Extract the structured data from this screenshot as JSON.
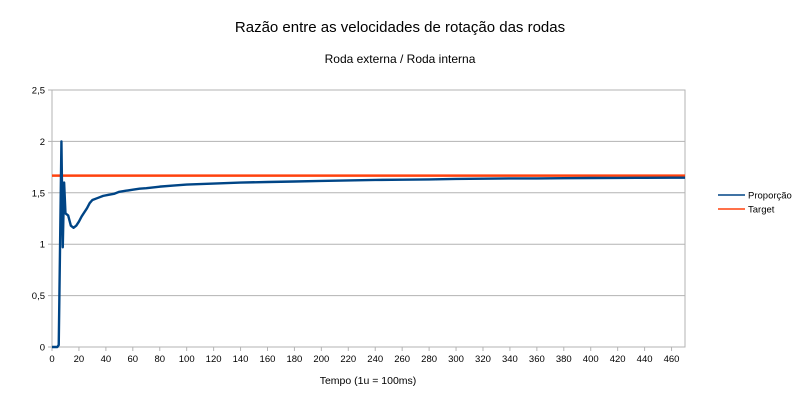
{
  "chart_data": {
    "type": "line",
    "title": "Razão entre as velocidades de rotação das rodas",
    "subtitle": "Roda externa / Roda interna",
    "xlabel": "Tempo (1u = 100ms)",
    "ylabel": "",
    "xlim": [
      0,
      470
    ],
    "ylim": [
      0,
      2.5
    ],
    "x_ticks": [
      "0",
      "20",
      "40",
      "60",
      "80",
      "100",
      "120",
      "140",
      "160",
      "180",
      "200",
      "220",
      "240",
      "260",
      "280",
      "300",
      "320",
      "340",
      "360",
      "380",
      "400",
      "420",
      "440",
      "460"
    ],
    "y_ticks": [
      {
        "value": 0,
        "label": "0"
      },
      {
        "value": 0.5,
        "label": "0,5"
      },
      {
        "value": 1,
        "label": "1"
      },
      {
        "value": 1.5,
        "label": "1,5"
      },
      {
        "value": 2,
        "label": "2"
      },
      {
        "value": 2.5,
        "label": "2,5"
      }
    ],
    "grid": true,
    "legend_position": "right",
    "series": [
      {
        "name": "Proporção",
        "color": "#004586",
        "points": [
          [
            0,
            0
          ],
          [
            2,
            0
          ],
          [
            4,
            0
          ],
          [
            5,
            0.02
          ],
          [
            6,
            1.0
          ],
          [
            7,
            2.0
          ],
          [
            8,
            0.97
          ],
          [
            9,
            1.6
          ],
          [
            10,
            1.3
          ],
          [
            12,
            1.28
          ],
          [
            14,
            1.18
          ],
          [
            16,
            1.16
          ],
          [
            18,
            1.18
          ],
          [
            20,
            1.22
          ],
          [
            22,
            1.27
          ],
          [
            24,
            1.31
          ],
          [
            26,
            1.35
          ],
          [
            28,
            1.4
          ],
          [
            30,
            1.43
          ],
          [
            34,
            1.45
          ],
          [
            38,
            1.47
          ],
          [
            42,
            1.48
          ],
          [
            46,
            1.49
          ],
          [
            50,
            1.51
          ],
          [
            55,
            1.52
          ],
          [
            60,
            1.53
          ],
          [
            65,
            1.54
          ],
          [
            70,
            1.545
          ],
          [
            80,
            1.56
          ],
          [
            90,
            1.57
          ],
          [
            100,
            1.58
          ],
          [
            120,
            1.59
          ],
          [
            140,
            1.6
          ],
          [
            160,
            1.605
          ],
          [
            180,
            1.61
          ],
          [
            200,
            1.615
          ],
          [
            220,
            1.62
          ],
          [
            240,
            1.625
          ],
          [
            260,
            1.628
          ],
          [
            280,
            1.63
          ],
          [
            300,
            1.635
          ],
          [
            320,
            1.637
          ],
          [
            340,
            1.64
          ],
          [
            360,
            1.64
          ],
          [
            380,
            1.642
          ],
          [
            400,
            1.644
          ],
          [
            420,
            1.645
          ],
          [
            440,
            1.646
          ],
          [
            460,
            1.647
          ],
          [
            470,
            1.647
          ]
        ]
      },
      {
        "name": "Target",
        "color": "#ff420e",
        "points": [
          [
            0,
            1.667
          ],
          [
            470,
            1.667
          ]
        ]
      }
    ]
  }
}
